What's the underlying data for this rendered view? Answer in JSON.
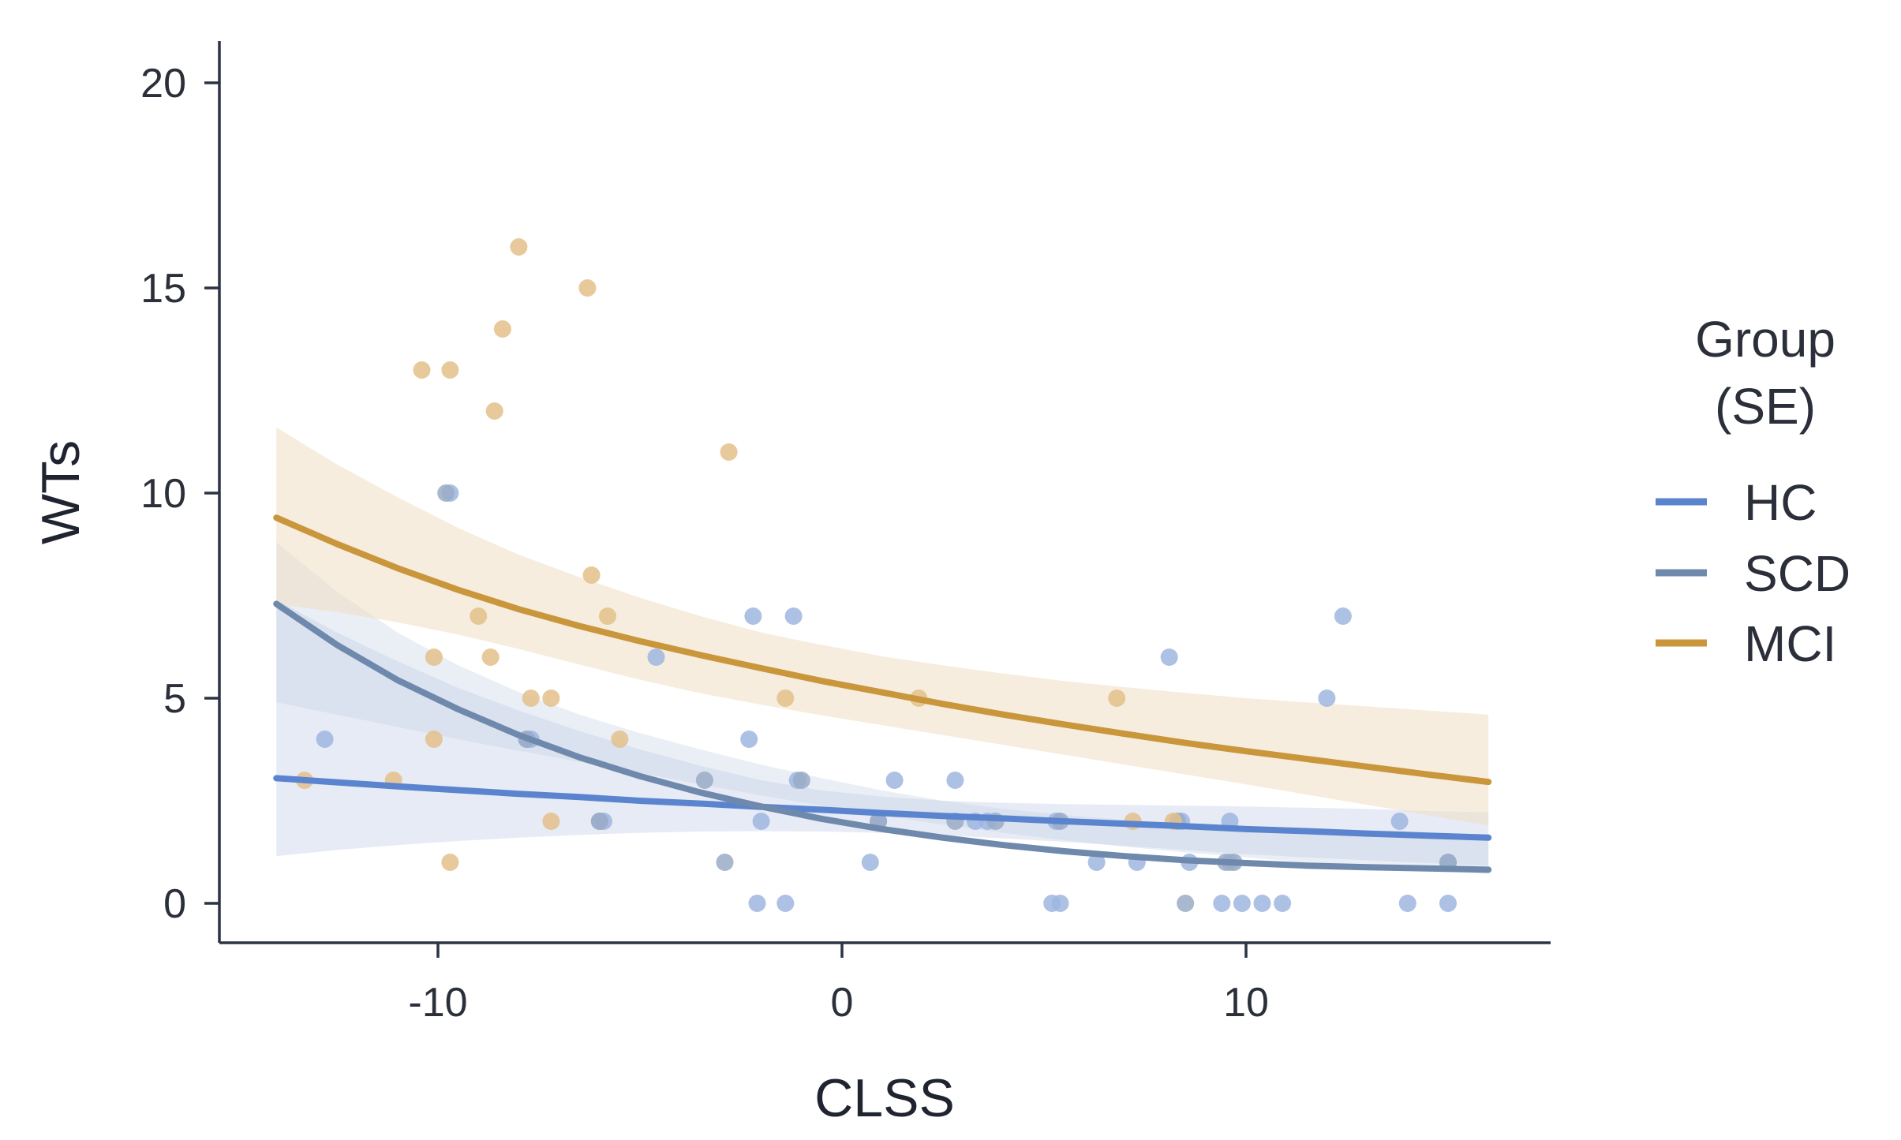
{
  "chart_data": {
    "type": "scatter",
    "title": "",
    "xlabel": "CLSS",
    "ylabel": "WTs",
    "xlim": [
      -15.5,
      17.5
    ],
    "ylim": [
      -1,
      21
    ],
    "x_ticks": [
      -10,
      0,
      10
    ],
    "x_tick_labels": [
      "-10",
      "0",
      "10"
    ],
    "y_ticks": [
      0,
      5,
      10,
      15,
      20
    ],
    "y_tick_labels": [
      "0",
      "5",
      "10",
      "15",
      "20"
    ],
    "grid": false,
    "legend": {
      "title_line1": "Group",
      "title_line2": "(SE)",
      "placement": "right",
      "entries": [
        "HC",
        "SCD",
        "MCI"
      ]
    },
    "series": [
      {
        "name": "HC",
        "color": "#5b84cf",
        "points": [
          [
            -12.8,
            4
          ],
          [
            -9.7,
            10
          ],
          [
            -7.8,
            4
          ],
          [
            -7.7,
            4
          ],
          [
            -6,
            2
          ],
          [
            -5.9,
            2
          ],
          [
            -4.6,
            6
          ],
          [
            -2.2,
            7
          ],
          [
            -2.1,
            0
          ],
          [
            -2,
            2
          ],
          [
            -1.4,
            0
          ],
          [
            -1.2,
            7
          ],
          [
            -1.1,
            3
          ],
          [
            -2.3,
            4
          ],
          [
            0.7,
            1
          ],
          [
            0.9,
            2
          ],
          [
            1.3,
            3
          ],
          [
            2.8,
            3
          ],
          [
            3.3,
            2
          ],
          [
            3.6,
            2
          ],
          [
            5.2,
            0
          ],
          [
            5.3,
            2
          ],
          [
            5.4,
            0
          ],
          [
            6.3,
            1
          ],
          [
            7.3,
            1
          ],
          [
            8.1,
            6
          ],
          [
            8.4,
            2
          ],
          [
            8.6,
            1
          ],
          [
            9.6,
            2
          ],
          [
            9.4,
            0
          ],
          [
            9.9,
            0
          ],
          [
            10.4,
            0
          ],
          [
            10.9,
            0
          ],
          [
            12,
            5
          ],
          [
            12.4,
            7
          ],
          [
            13.8,
            2
          ],
          [
            14,
            0
          ],
          [
            15,
            1
          ],
          [
            15,
            0
          ],
          [
            9.6,
            1
          ]
        ],
        "fit": [
          3.05,
          2.95,
          2.85,
          2.76,
          2.67,
          2.59,
          2.5,
          2.43,
          2.35,
          2.28,
          2.2,
          2.13,
          2.07,
          2.0,
          1.94,
          1.88,
          1.81,
          1.76,
          1.7,
          1.65,
          1.6
        ],
        "se_lower": [
          1.15,
          1.3,
          1.42,
          1.52,
          1.6,
          1.67,
          1.72,
          1.75,
          1.76,
          1.75,
          1.72,
          1.66,
          1.58,
          1.5,
          1.4,
          1.3,
          1.2,
          1.12,
          1.05,
          0.98,
          0.92
        ],
        "se_upper": [
          7.4,
          6.6,
          5.9,
          5.25,
          4.7,
          4.2,
          3.75,
          3.35,
          3.0,
          2.75,
          2.6,
          2.5,
          2.45,
          2.42,
          2.4,
          2.38,
          2.36,
          2.33,
          2.3,
          2.25,
          2.22
        ]
      },
      {
        "name": "SCD",
        "color": "#6f89ad",
        "points": [
          [
            -9.8,
            10
          ],
          [
            -7.8,
            4
          ],
          [
            -6,
            2
          ],
          [
            -3.4,
            3
          ],
          [
            -2.9,
            1
          ],
          [
            -1,
            3
          ],
          [
            0.9,
            2
          ],
          [
            2.8,
            2
          ],
          [
            3.8,
            2
          ],
          [
            5.4,
            2
          ],
          [
            8.3,
            2
          ],
          [
            8.5,
            0
          ],
          [
            9.5,
            1
          ],
          [
            9.7,
            1
          ],
          [
            15,
            1
          ]
        ],
        "fit": [
          7.3,
          6.3,
          5.44,
          4.73,
          4.1,
          3.56,
          3.1,
          2.7,
          2.36,
          2.06,
          1.81,
          1.6,
          1.42,
          1.27,
          1.15,
          1.05,
          0.98,
          0.92,
          0.88,
          0.85,
          0.82
        ],
        "se_lower": [
          4.9,
          4.6,
          4.3,
          4.0,
          3.72,
          3.45,
          3.18,
          2.9,
          2.63,
          2.38,
          2.14,
          1.92,
          1.72,
          1.54,
          1.38,
          1.24,
          1.12,
          1.0,
          0.9,
          0.8,
          0.72
        ],
        "se_upper": [
          8.8,
          7.6,
          6.6,
          5.8,
          5.15,
          4.6,
          4.15,
          3.75,
          3.38,
          3.05,
          2.75,
          2.5,
          2.3,
          2.15,
          2.03,
          1.94,
          1.86,
          1.8,
          1.74,
          1.69,
          1.64
        ]
      },
      {
        "name": "MCI",
        "color": "#c9963c",
        "points": [
          [
            -13.3,
            3
          ],
          [
            -11.1,
            3
          ],
          [
            -10.4,
            13
          ],
          [
            -10.1,
            6
          ],
          [
            -10.1,
            4
          ],
          [
            -9.7,
            13
          ],
          [
            -9.7,
            1
          ],
          [
            -9,
            7
          ],
          [
            -8.7,
            6
          ],
          [
            -8.6,
            12
          ],
          [
            -8.4,
            14
          ],
          [
            -8,
            16
          ],
          [
            -7.7,
            5
          ],
          [
            -7.2,
            5
          ],
          [
            -7.2,
            2
          ],
          [
            -6.3,
            15
          ],
          [
            -6.2,
            8
          ],
          [
            -5.8,
            7
          ],
          [
            -5.5,
            4
          ],
          [
            -2.8,
            11
          ],
          [
            -1.4,
            5
          ],
          [
            1.9,
            5
          ],
          [
            6.8,
            5
          ],
          [
            7.2,
            2
          ],
          [
            8.2,
            2
          ]
        ],
        "fit": [
          9.4,
          8.76,
          8.17,
          7.64,
          7.17,
          6.76,
          6.39,
          6.05,
          5.73,
          5.42,
          5.14,
          4.86,
          4.6,
          4.36,
          4.13,
          3.91,
          3.71,
          3.52,
          3.33,
          3.14,
          2.96
        ],
        "se_lower": [
          7.3,
          7.1,
          6.85,
          6.55,
          6.2,
          5.82,
          5.45,
          5.12,
          4.84,
          4.58,
          4.34,
          4.1,
          3.86,
          3.62,
          3.38,
          3.14,
          2.9,
          2.65,
          2.4,
          2.15,
          1.9
        ],
        "se_upper": [
          11.6,
          10.7,
          9.9,
          9.15,
          8.5,
          7.95,
          7.45,
          7.0,
          6.6,
          6.3,
          6.02,
          5.8,
          5.6,
          5.42,
          5.27,
          5.13,
          5.0,
          4.9,
          4.8,
          4.7,
          4.6
        ]
      }
    ]
  }
}
